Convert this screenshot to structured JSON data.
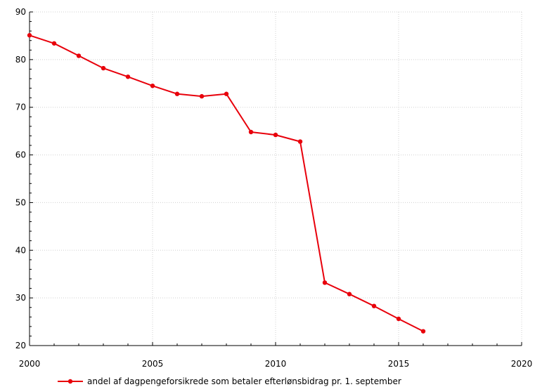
{
  "chart_data": {
    "type": "line",
    "title": "",
    "xlabel": "",
    "ylabel": "",
    "xlim": [
      2000,
      2020
    ],
    "ylim": [
      20,
      90
    ],
    "x_ticks": [
      2000,
      2005,
      2010,
      2015,
      2020
    ],
    "y_ticks": [
      20,
      30,
      40,
      50,
      60,
      70,
      80,
      90
    ],
    "grid": true,
    "legend_position": "bottom",
    "series": [
      {
        "name": "andel af dagpengeforsikrede som betaler efterlønsbidrag pr. 1. september",
        "color": "#e8000b",
        "x": [
          2000,
          2001,
          2002,
          2003,
          2004,
          2005,
          2006,
          2007,
          2008,
          2009,
          2010,
          2011,
          2012,
          2013,
          2014,
          2015,
          2016
        ],
        "y": [
          85.1,
          83.4,
          80.8,
          78.2,
          76.4,
          74.5,
          72.8,
          72.3,
          72.8,
          64.8,
          64.2,
          62.8,
          33.2,
          30.8,
          28.3,
          25.6,
          23.0
        ]
      }
    ]
  }
}
